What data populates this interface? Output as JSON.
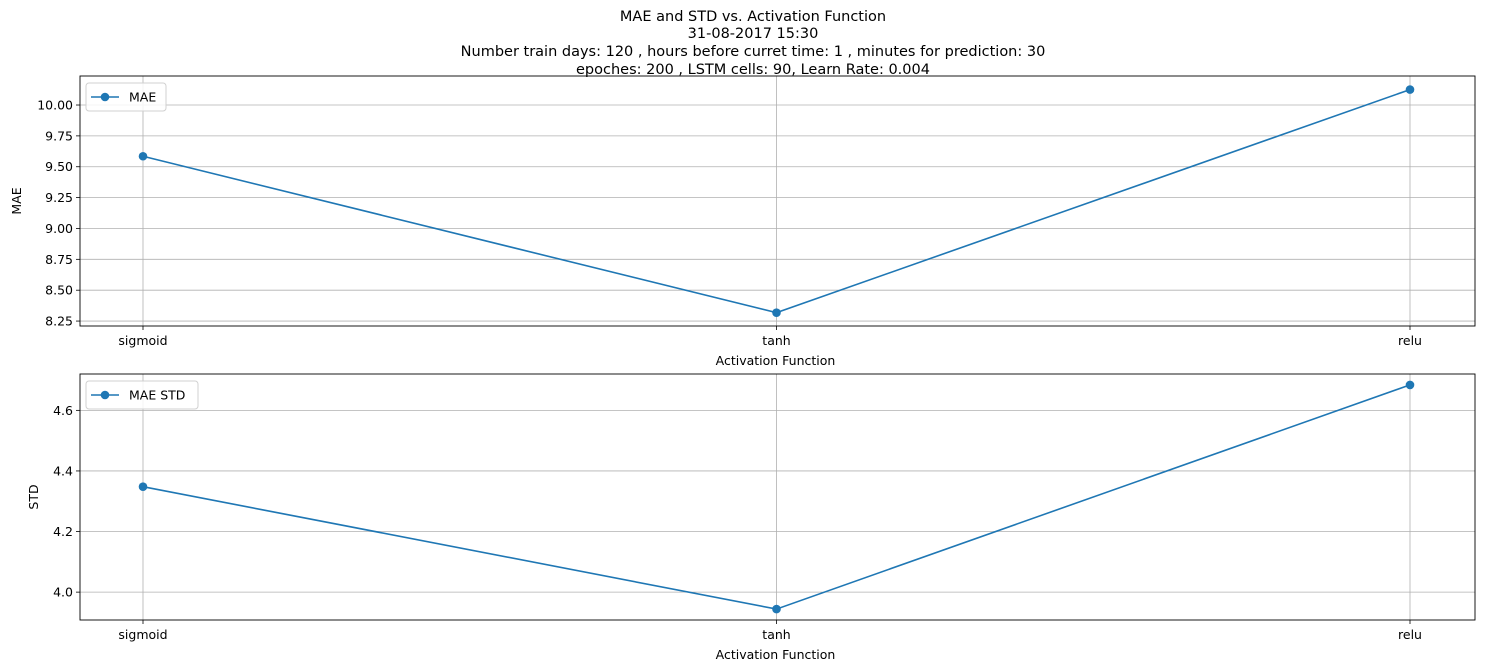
{
  "figure": {
    "title_lines": [
      "MAE and STD vs. Activation Function",
      "31-08-2017 15:30",
      "Number train days: 120 , hours before curret time: 1 , minutes for prediction: 30",
      "epoches: 200 , LSTM cells: 90, Learn Rate: 0.004"
    ]
  },
  "colors": {
    "line": "#1f77b4",
    "grid": "#b0b0b0",
    "axis": "#000000"
  },
  "chart_data": [
    {
      "type": "line",
      "title": "",
      "xlabel": "Activation Function",
      "ylabel": "MAE",
      "categories": [
        "sigmoid",
        "tanh",
        "relu"
      ],
      "series": [
        {
          "name": "MAE",
          "values": [
            9.585,
            8.318,
            10.125
          ],
          "marker": "circle"
        }
      ],
      "ylim": [
        8.21,
        10.235
      ],
      "yticks": [
        "8.25",
        "8.50",
        "8.75",
        "9.00",
        "9.25",
        "9.50",
        "9.75",
        "10.00"
      ],
      "grid": true,
      "legend": "top-left"
    },
    {
      "type": "line",
      "title": "",
      "xlabel": "Activation Function",
      "ylabel": "STD",
      "categories": [
        "sigmoid",
        "tanh",
        "relu"
      ],
      "series": [
        {
          "name": "MAE STD",
          "values": [
            4.348,
            3.944,
            4.684
          ],
          "marker": "circle"
        }
      ],
      "ylim": [
        3.908,
        4.72
      ],
      "yticks": [
        "4.0",
        "4.2",
        "4.4",
        "4.6"
      ],
      "grid": true,
      "legend": "top-left"
    }
  ]
}
